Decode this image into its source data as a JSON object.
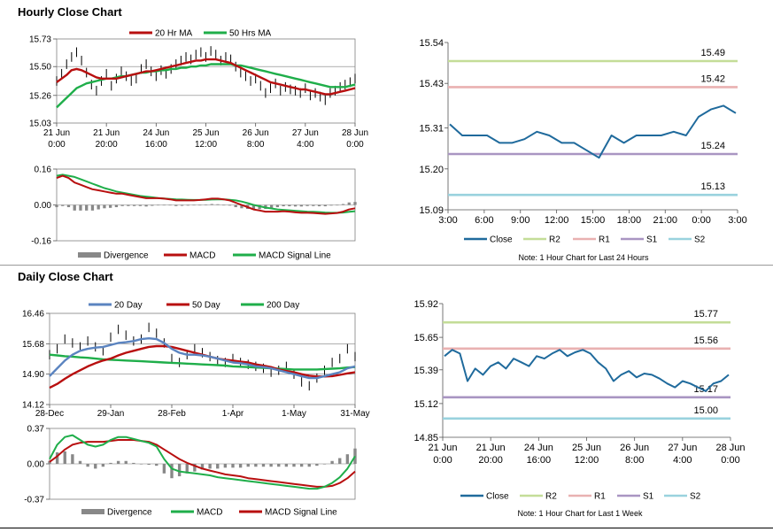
{
  "colors": {
    "ma_red": "#b80f0f",
    "ma_green": "#1fae4a",
    "price": "#1f6a9c",
    "ma20_blue": "#5b84c0",
    "divergence": "#888888",
    "r2": "#c4dd98",
    "r1": "#e9b1b1",
    "s1": "#a995c2",
    "s2": "#99d2de"
  },
  "sections": {
    "hourly_title": "Hourly Close Chart",
    "daily_title": "Daily Close Chart"
  },
  "chart_data": [
    {
      "id": "hourly-price",
      "type": "line",
      "legend": [
        "20 Hr MA",
        "50 Hrs MA"
      ],
      "legend_placement": "top",
      "ylim": [
        15.03,
        15.73
      ],
      "yticks": [
        "15.73",
        "15.50",
        "15.26",
        "15.03"
      ],
      "xticks": [
        [
          "21 Jun",
          "0:00"
        ],
        [
          "21 Jun",
          "20:00"
        ],
        [
          "24 Jun",
          "16:00"
        ],
        [
          "25 Jun",
          "12:00"
        ],
        [
          "26 Jun",
          "8:00"
        ],
        [
          "27 Jun",
          "4:00"
        ],
        [
          "28 Jun",
          "0:00"
        ]
      ],
      "grid": "horizontal",
      "close": [
        15.38,
        15.44,
        15.52,
        15.58,
        15.62,
        15.55,
        15.45,
        15.35,
        15.3,
        15.38,
        15.44,
        15.34,
        15.4,
        15.46,
        15.42,
        15.38,
        15.4,
        15.48,
        15.52,
        15.46,
        15.42,
        15.47,
        15.44,
        15.48,
        15.52,
        15.55,
        15.58,
        15.56,
        15.6,
        15.62,
        15.58,
        15.63,
        15.6,
        15.55,
        15.58,
        15.56,
        15.5,
        15.45,
        15.42,
        15.38,
        15.4,
        15.34,
        15.28,
        15.32,
        15.36,
        15.3,
        15.33,
        15.31,
        15.3,
        15.28,
        15.32,
        15.26,
        15.28,
        15.25,
        15.22,
        15.28,
        15.3,
        15.33,
        15.35,
        15.37,
        15.4
      ],
      "ma20": [
        15.37,
        15.4,
        15.43,
        15.47,
        15.48,
        15.47,
        15.45,
        15.43,
        15.41,
        15.4,
        15.4,
        15.4,
        15.4,
        15.41,
        15.42,
        15.43,
        15.44,
        15.45,
        15.46,
        15.46,
        15.47,
        15.48,
        15.49,
        15.5,
        15.51,
        15.52,
        15.53,
        15.54,
        15.55,
        15.55,
        15.56,
        15.56,
        15.56,
        15.55,
        15.54,
        15.53,
        15.51,
        15.49,
        15.47,
        15.45,
        15.43,
        15.41,
        15.39,
        15.37,
        15.36,
        15.35,
        15.34,
        15.33,
        15.32,
        15.31,
        15.31,
        15.3,
        15.29,
        15.28,
        15.27,
        15.27,
        15.28,
        15.29,
        15.3,
        15.31,
        15.32
      ],
      "ma50": [
        15.16,
        15.2,
        15.24,
        15.28,
        15.32,
        15.34,
        15.36,
        15.37,
        15.38,
        15.39,
        15.4,
        15.4,
        15.41,
        15.42,
        15.42,
        15.43,
        15.44,
        15.45,
        15.45,
        15.46,
        15.46,
        15.47,
        15.47,
        15.48,
        15.48,
        15.49,
        15.49,
        15.5,
        15.5,
        15.51,
        15.51,
        15.52,
        15.52,
        15.52,
        15.52,
        15.52,
        15.51,
        15.51,
        15.5,
        15.49,
        15.48,
        15.47,
        15.46,
        15.45,
        15.44,
        15.43,
        15.42,
        15.41,
        15.4,
        15.39,
        15.38,
        15.37,
        15.36,
        15.35,
        15.34,
        15.33,
        15.33,
        15.33,
        15.33,
        15.34,
        15.35
      ]
    },
    {
      "id": "hourly-macd",
      "type": "line",
      "legend": [
        "Divergence",
        "MACD",
        "MACD Signal Line"
      ],
      "legend_placement": "bottom",
      "ylim": [
        -0.16,
        0.16
      ],
      "yticks": [
        "0.16",
        "0.00",
        "-0.16"
      ],
      "grid": "horizontal",
      "macd": [
        0.12,
        0.13,
        0.12,
        0.1,
        0.09,
        0.08,
        0.07,
        0.065,
        0.06,
        0.055,
        0.05,
        0.05,
        0.045,
        0.04,
        0.035,
        0.03,
        0.03,
        0.03,
        0.028,
        0.025,
        0.02,
        0.02,
        0.02,
        0.02,
        0.022,
        0.025,
        0.028,
        0.028,
        0.025,
        0.02,
        0.01,
        0.0,
        -0.01,
        -0.02,
        -0.025,
        -0.03,
        -0.03,
        -0.03,
        -0.028,
        -0.03,
        -0.033,
        -0.035,
        -0.035,
        -0.036,
        -0.038,
        -0.04,
        -0.038,
        -0.036,
        -0.03,
        -0.02,
        -0.015
      ],
      "signal": [
        0.13,
        0.135,
        0.13,
        0.125,
        0.115,
        0.105,
        0.095,
        0.085,
        0.075,
        0.068,
        0.06,
        0.055,
        0.05,
        0.045,
        0.04,
        0.037,
        0.034,
        0.031,
        0.029,
        0.027,
        0.025,
        0.024,
        0.023,
        0.022,
        0.022,
        0.023,
        0.024,
        0.025,
        0.025,
        0.023,
        0.02,
        0.015,
        0.008,
        0.0,
        -0.006,
        -0.012,
        -0.016,
        -0.02,
        -0.022,
        -0.024,
        -0.026,
        -0.028,
        -0.03,
        -0.031,
        -0.032,
        -0.034,
        -0.035,
        -0.035,
        -0.034,
        -0.031,
        -0.028
      ],
      "divergence": [
        -0.01,
        -0.005,
        -0.01,
        -0.025,
        -0.025,
        -0.025,
        -0.025,
        -0.02,
        -0.015,
        -0.013,
        -0.01,
        -0.005,
        -0.005,
        -0.005,
        -0.005,
        -0.007,
        -0.004,
        -0.001,
        -0.001,
        -0.002,
        -0.005,
        -0.004,
        -0.003,
        -0.002,
        0.0,
        0.002,
        0.004,
        0.003,
        0.0,
        -0.003,
        -0.01,
        -0.015,
        -0.018,
        -0.02,
        -0.019,
        -0.018,
        -0.014,
        -0.01,
        -0.006,
        -0.006,
        -0.007,
        -0.007,
        -0.005,
        -0.005,
        -0.006,
        -0.006,
        -0.003,
        -0.001,
        0.004,
        0.011,
        0.013
      ]
    },
    {
      "id": "hourly-levels",
      "type": "line",
      "legend": [
        "Close",
        "R2",
        "R1",
        "S1",
        "S2"
      ],
      "legend_placement": "bottom",
      "note": "Note: 1 Hour Chart for Last 24 Hours",
      "ylim": [
        15.09,
        15.54
      ],
      "yticks": [
        "15.54",
        "15.43",
        "15.31",
        "15.20",
        "15.09"
      ],
      "xticks": [
        "3:00",
        "6:00",
        "9:00",
        "12:00",
        "15:00",
        "18:00",
        "21:00",
        "0:00",
        "3:00"
      ],
      "levels": {
        "R2": 15.49,
        "R1": 15.42,
        "S1": 15.24,
        "S2": 15.13
      },
      "level_labels": {
        "R2": "15.49",
        "R1": "15.42",
        "S1": "15.24",
        "S2": "15.13"
      },
      "close": [
        15.32,
        15.29,
        15.29,
        15.29,
        15.27,
        15.27,
        15.28,
        15.3,
        15.29,
        15.27,
        15.27,
        15.25,
        15.23,
        15.29,
        15.27,
        15.29,
        15.29,
        15.29,
        15.3,
        15.29,
        15.34,
        15.36,
        15.37,
        15.35
      ]
    },
    {
      "id": "daily-price",
      "type": "line",
      "legend": [
        "20 Day",
        "50 Day",
        "200 Day"
      ],
      "legend_placement": "top",
      "ylim": [
        14.12,
        16.46
      ],
      "yticks": [
        "16.46",
        "15.68",
        "14.90",
        "14.12"
      ],
      "xticks": [
        "28-Dec",
        "29-Jan",
        "28-Feb",
        "1-Apr",
        "1-May",
        "31-May"
      ],
      "grid": "horizontal",
      "close": [
        15.4,
        15.55,
        15.8,
        15.7,
        15.6,
        15.75,
        15.6,
        15.5,
        15.85,
        16.05,
        15.9,
        15.75,
        15.8,
        16.1,
        15.95,
        15.7,
        15.3,
        15.2,
        15.4,
        15.55,
        15.45,
        15.35,
        15.25,
        15.2,
        15.3,
        15.2,
        15.15,
        15.1,
        15.05,
        14.95,
        15.0,
        15.1,
        14.9,
        14.7,
        14.6,
        14.8,
        15.0,
        15.2,
        15.3,
        15.55,
        15.35
      ],
      "ma20": [
        14.85,
        15.05,
        15.25,
        15.4,
        15.5,
        15.55,
        15.58,
        15.6,
        15.65,
        15.7,
        15.72,
        15.75,
        15.8,
        15.82,
        15.8,
        15.7,
        15.55,
        15.45,
        15.4,
        15.4,
        15.38,
        15.35,
        15.3,
        15.25,
        15.2,
        15.18,
        15.15,
        15.1,
        15.08,
        15.05,
        15.0,
        14.95,
        14.9,
        14.85,
        14.8,
        14.8,
        14.85,
        14.9,
        14.95,
        15.05,
        15.1
      ],
      "ma50": [
        14.55,
        14.65,
        14.78,
        14.9,
        15.0,
        15.1,
        15.18,
        15.25,
        15.3,
        15.38,
        15.45,
        15.5,
        15.55,
        15.6,
        15.62,
        15.62,
        15.6,
        15.55,
        15.5,
        15.45,
        15.4,
        15.35,
        15.3,
        15.27,
        15.25,
        15.22,
        15.2,
        15.15,
        15.12,
        15.08,
        15.02,
        14.98,
        14.95,
        14.9,
        14.86,
        14.84,
        14.84,
        14.85,
        14.88,
        14.92,
        14.95
      ],
      "ma200": [
        15.4,
        15.38,
        15.36,
        15.35,
        15.33,
        15.32,
        15.3,
        15.28,
        15.27,
        15.26,
        15.25,
        15.24,
        15.23,
        15.22,
        15.21,
        15.2,
        15.19,
        15.18,
        15.17,
        15.16,
        15.15,
        15.14,
        15.13,
        15.12,
        15.1,
        15.09,
        15.08,
        15.07,
        15.06,
        15.05,
        15.04,
        15.03,
        15.02,
        15.02,
        15.02,
        15.02,
        15.03,
        15.04,
        15.05,
        15.07,
        15.08
      ]
    },
    {
      "id": "daily-macd",
      "type": "line",
      "legend": [
        "Divergence",
        "MACD",
        "MACD Signal Line"
      ],
      "legend_placement": "bottom",
      "ylim": [
        -0.37,
        0.37
      ],
      "yticks": [
        "0.37",
        "0.00",
        "-0.37"
      ],
      "grid": "horizontal",
      "macd": [
        0.05,
        0.2,
        0.28,
        0.3,
        0.25,
        0.2,
        0.18,
        0.2,
        0.25,
        0.28,
        0.28,
        0.26,
        0.24,
        0.22,
        0.18,
        0.05,
        -0.05,
        -0.08,
        -0.09,
        -0.1,
        -0.11,
        -0.12,
        -0.14,
        -0.15,
        -0.16,
        -0.17,
        -0.18,
        -0.19,
        -0.2,
        -0.21,
        -0.22,
        -0.23,
        -0.24,
        -0.25,
        -0.26,
        -0.26,
        -0.24,
        -0.2,
        -0.14,
        -0.05,
        0.08
      ],
      "signal": [
        0.02,
        0.08,
        0.15,
        0.2,
        0.22,
        0.23,
        0.23,
        0.23,
        0.24,
        0.25,
        0.25,
        0.25,
        0.24,
        0.23,
        0.2,
        0.15,
        0.1,
        0.05,
        0.01,
        -0.02,
        -0.05,
        -0.07,
        -0.09,
        -0.11,
        -0.12,
        -0.13,
        -0.15,
        -0.16,
        -0.17,
        -0.18,
        -0.19,
        -0.2,
        -0.21,
        -0.22,
        -0.23,
        -0.24,
        -0.24,
        -0.23,
        -0.2,
        -0.15,
        -0.08
      ],
      "divergence": [
        0.03,
        0.12,
        0.13,
        0.1,
        0.03,
        -0.03,
        -0.05,
        -0.03,
        0.01,
        0.03,
        0.03,
        0.01,
        0.0,
        -0.01,
        -0.02,
        -0.1,
        -0.15,
        -0.13,
        -0.1,
        -0.08,
        -0.06,
        -0.05,
        -0.05,
        -0.04,
        -0.04,
        -0.04,
        -0.03,
        -0.03,
        -0.03,
        -0.03,
        -0.03,
        -0.03,
        -0.03,
        -0.03,
        -0.03,
        -0.02,
        0.0,
        0.03,
        0.06,
        0.1,
        0.16
      ]
    },
    {
      "id": "daily-levels",
      "type": "line",
      "legend": [
        "Close",
        "R2",
        "R1",
        "S1",
        "S2"
      ],
      "legend_placement": "bottom",
      "note": "Note: 1 Hour Chart for Last 1 Week",
      "ylim": [
        14.85,
        15.92
      ],
      "yticks": [
        "15.92",
        "15.65",
        "15.39",
        "15.12",
        "14.85"
      ],
      "xticks": [
        [
          "21 Jun",
          "0:00"
        ],
        [
          "21 Jun",
          "20:00"
        ],
        [
          "24 Jun",
          "16:00"
        ],
        [
          "25 Jun",
          "12:00"
        ],
        [
          "26 Jun",
          "8:00"
        ],
        [
          "27 Jun",
          "4:00"
        ],
        [
          "28 Jun",
          "0:00"
        ]
      ],
      "levels": {
        "R2": 15.77,
        "R1": 15.56,
        "S1": 15.17,
        "S2": 15.0
      },
      "level_labels": {
        "R2": "15.77",
        "R1": "15.56",
        "S1": "15.17",
        "S2": "15.00"
      },
      "close": [
        15.5,
        15.55,
        15.52,
        15.3,
        15.4,
        15.35,
        15.42,
        15.45,
        15.4,
        15.48,
        15.45,
        15.42,
        15.5,
        15.48,
        15.52,
        15.55,
        15.5,
        15.53,
        15.55,
        15.52,
        15.45,
        15.4,
        15.3,
        15.35,
        15.38,
        15.33,
        15.36,
        15.35,
        15.32,
        15.28,
        15.25,
        15.3,
        15.28,
        15.25,
        15.22,
        15.28,
        15.3,
        15.35
      ]
    }
  ]
}
